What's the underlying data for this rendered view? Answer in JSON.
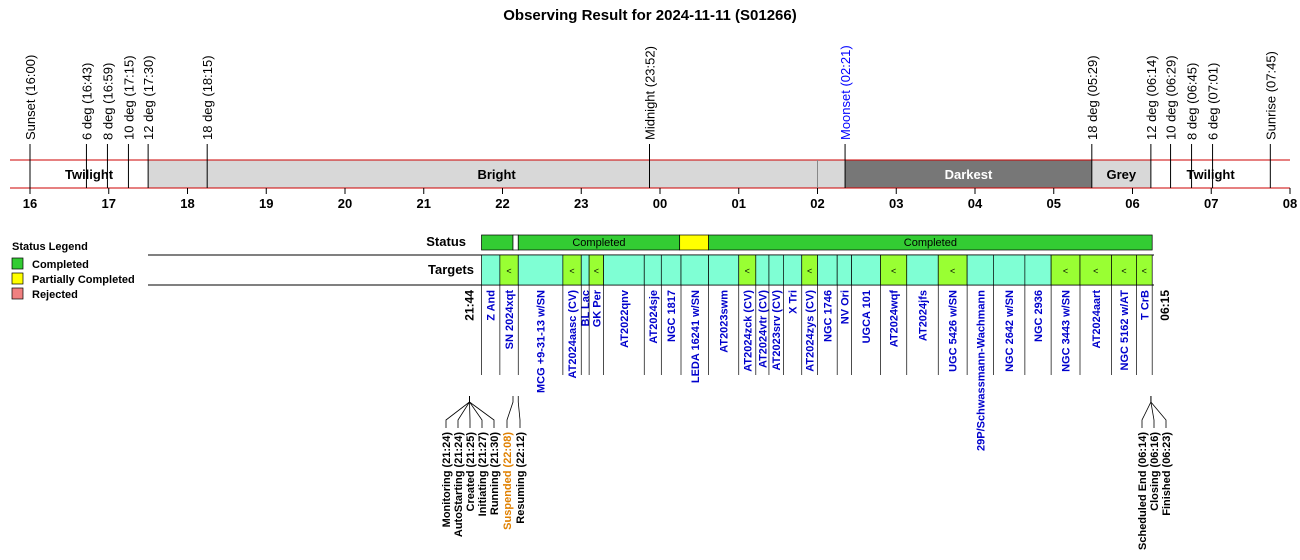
{
  "title": "Observing Result for 2024-11-11 (S01266)",
  "colors": {
    "twilight": "#ffffff",
    "bright": "#d8d8d8",
    "darkest": "#777777",
    "grey": "#d8d8d8",
    "completed": "#33cc33",
    "partial": "#ffff00",
    "rejected": "#f08080",
    "target_normal": "#7fffd4",
    "target_flag": "#99ff33",
    "target_text": "#0000cc",
    "moon_text": "#0000ff",
    "suspended_text": "#e08000",
    "axis_line": "#cc0000"
  },
  "chart_data": {
    "type": "timeline",
    "x_axis": {
      "hours": [
        "16",
        "17",
        "18",
        "19",
        "20",
        "21",
        "22",
        "23",
        "00",
        "01",
        "02",
        "03",
        "04",
        "05",
        "06",
        "07",
        "08"
      ]
    },
    "sun_events": [
      {
        "label": "Sunset (16:00)",
        "time": "16:00"
      },
      {
        "label": "6 deg (16:43)",
        "time": "16:43"
      },
      {
        "label": "8 deg (16:59)",
        "time": "16:59"
      },
      {
        "label": "10 deg (17:15)",
        "time": "17:15"
      },
      {
        "label": "12 deg (17:30)",
        "time": "17:30"
      },
      {
        "label": "18 deg (18:15)",
        "time": "18:15"
      },
      {
        "label": "Midnight (23:52)",
        "time": "23:52"
      },
      {
        "label": "Moonset (02:21)",
        "time": "02:21",
        "moon": true
      },
      {
        "label": "18 deg (05:29)",
        "time": "05:29"
      },
      {
        "label": "12 deg (06:14)",
        "time": "06:14"
      },
      {
        "label": "10 deg (06:29)",
        "time": "06:29"
      },
      {
        "label": "8 deg (06:45)",
        "time": "06:45"
      },
      {
        "label": "6 deg (07:01)",
        "time": "07:01"
      },
      {
        "label": "Sunrise (07:45)",
        "time": "07:45"
      }
    ],
    "sky_bands": [
      {
        "label": "Twilight",
        "start": "16:00",
        "end": "17:30",
        "kind": "twilight"
      },
      {
        "label": "Bright",
        "start": "17:30",
        "end": "02:21",
        "kind": "bright"
      },
      {
        "label": "Darkest",
        "start": "02:21",
        "end": "05:29",
        "kind": "darkest"
      },
      {
        "label": "Grey",
        "start": "05:29",
        "end": "06:14",
        "kind": "grey"
      },
      {
        "label": "Twilight",
        "start": "06:14",
        "end": "07:45",
        "kind": "twilight"
      }
    ],
    "status_row_label": "Status",
    "status": [
      {
        "start": "21:44",
        "end": "22:08",
        "state": "completed",
        "label": ""
      },
      {
        "start": "22:08",
        "end": "22:12",
        "state": "none",
        "label": ""
      },
      {
        "start": "22:12",
        "end": "00:15",
        "state": "completed",
        "label": "Completed"
      },
      {
        "start": "00:15",
        "end": "00:37",
        "state": "partial",
        "label": ""
      },
      {
        "start": "00:37",
        "end": "06:15",
        "state": "completed",
        "label": "Completed"
      }
    ],
    "targets_row_label": "Targets",
    "targets": [
      {
        "name": "Z And",
        "start": "21:44",
        "end": "21:58",
        "flag": false
      },
      {
        "name": "SN 2024xqt",
        "start": "21:58",
        "end": "22:12",
        "flag": true
      },
      {
        "name": "MCG +9-31-13 w/SN",
        "start": "22:12",
        "end": "22:46",
        "flag": false
      },
      {
        "name": "AT2024aasc (CV)",
        "start": "22:46",
        "end": "23:00",
        "flag": true
      },
      {
        "name": "BL Lac",
        "start": "23:00",
        "end": "23:06",
        "flag": false
      },
      {
        "name": "GK Per",
        "start": "23:06",
        "end": "23:17",
        "flag": true
      },
      {
        "name": "AT2022qnv",
        "start": "23:17",
        "end": "23:48",
        "flag": false
      },
      {
        "name": "AT2024sje",
        "start": "23:48",
        "end": "24:01",
        "flag": false
      },
      {
        "name": "NGC 1817",
        "start": "24:01",
        "end": "24:16",
        "flag": false
      },
      {
        "name": "LEDA 16241 w/SN",
        "start": "24:16",
        "end": "24:37",
        "flag": false
      },
      {
        "name": "AT2023swm",
        "start": "24:37",
        "end": "25:00",
        "flag": false
      },
      {
        "name": "AT2024zck (CV)",
        "start": "25:00",
        "end": "25:13",
        "flag": true
      },
      {
        "name": "AT2024vtr (CV)",
        "start": "25:13",
        "end": "25:23",
        "flag": false
      },
      {
        "name": "AT2023srv (CV)",
        "start": "25:23",
        "end": "25:34",
        "flag": false
      },
      {
        "name": "X Tri",
        "start": "25:34",
        "end": "25:48",
        "flag": false
      },
      {
        "name": "AT2024zys (CV)",
        "start": "25:48",
        "end": "26:00",
        "flag": true
      },
      {
        "name": "NGC 1746",
        "start": "26:00",
        "end": "26:15",
        "flag": false
      },
      {
        "name": "NV Ori",
        "start": "26:15",
        "end": "26:26",
        "flag": false
      },
      {
        "name": "UGCA 101",
        "start": "26:26",
        "end": "26:48",
        "flag": false
      },
      {
        "name": "AT2024wqf",
        "start": "26:48",
        "end": "27:08",
        "flag": true
      },
      {
        "name": "AT2024jfs",
        "start": "27:08",
        "end": "27:32",
        "flag": false
      },
      {
        "name": "UGC 5426 w/SN",
        "start": "27:32",
        "end": "27:54",
        "flag": true
      },
      {
        "name": "29P/Schwassmann-Wachmann",
        "start": "27:54",
        "end": "28:14",
        "flag": false
      },
      {
        "name": "NGC 2642 w/SN",
        "start": "28:14",
        "end": "28:38",
        "flag": false
      },
      {
        "name": "NGC 2936",
        "start": "28:38",
        "end": "28:58",
        "flag": false
      },
      {
        "name": "NGC 3443 w/SN",
        "start": "28:58",
        "end": "29:20",
        "flag": true
      },
      {
        "name": "AT2024aart",
        "start": "29:20",
        "end": "29:44",
        "flag": true
      },
      {
        "name": "NGC 5162 w/AT",
        "start": "29:44",
        "end": "30:03",
        "flag": true
      },
      {
        "name": "T CrB",
        "start": "30:03",
        "end": "30:15",
        "flag": true
      }
    ],
    "start_label": "21:44",
    "end_label": "06:15",
    "events_left": [
      {
        "label": "Monitoring (21:24)"
      },
      {
        "label": "AutoStarting (21:24)"
      },
      {
        "label": "Created (21:25)"
      },
      {
        "label": "Initiating (21:27)"
      },
      {
        "label": "Running (21:30)"
      },
      {
        "label": "Suspended (22:08)",
        "suspended": true
      },
      {
        "label": "Resuming (22:12)"
      }
    ],
    "events_right": [
      {
        "label": "Scheduled End (06:14)"
      },
      {
        "label": "Closing (06:16)"
      },
      {
        "label": "Finished (06:23)"
      }
    ],
    "legend": {
      "title": "Status Legend",
      "items": [
        {
          "label": "Completed",
          "state": "completed"
        },
        {
          "label": "Partially Completed",
          "state": "partial"
        },
        {
          "label": "Rejected",
          "state": "rejected"
        }
      ]
    }
  }
}
